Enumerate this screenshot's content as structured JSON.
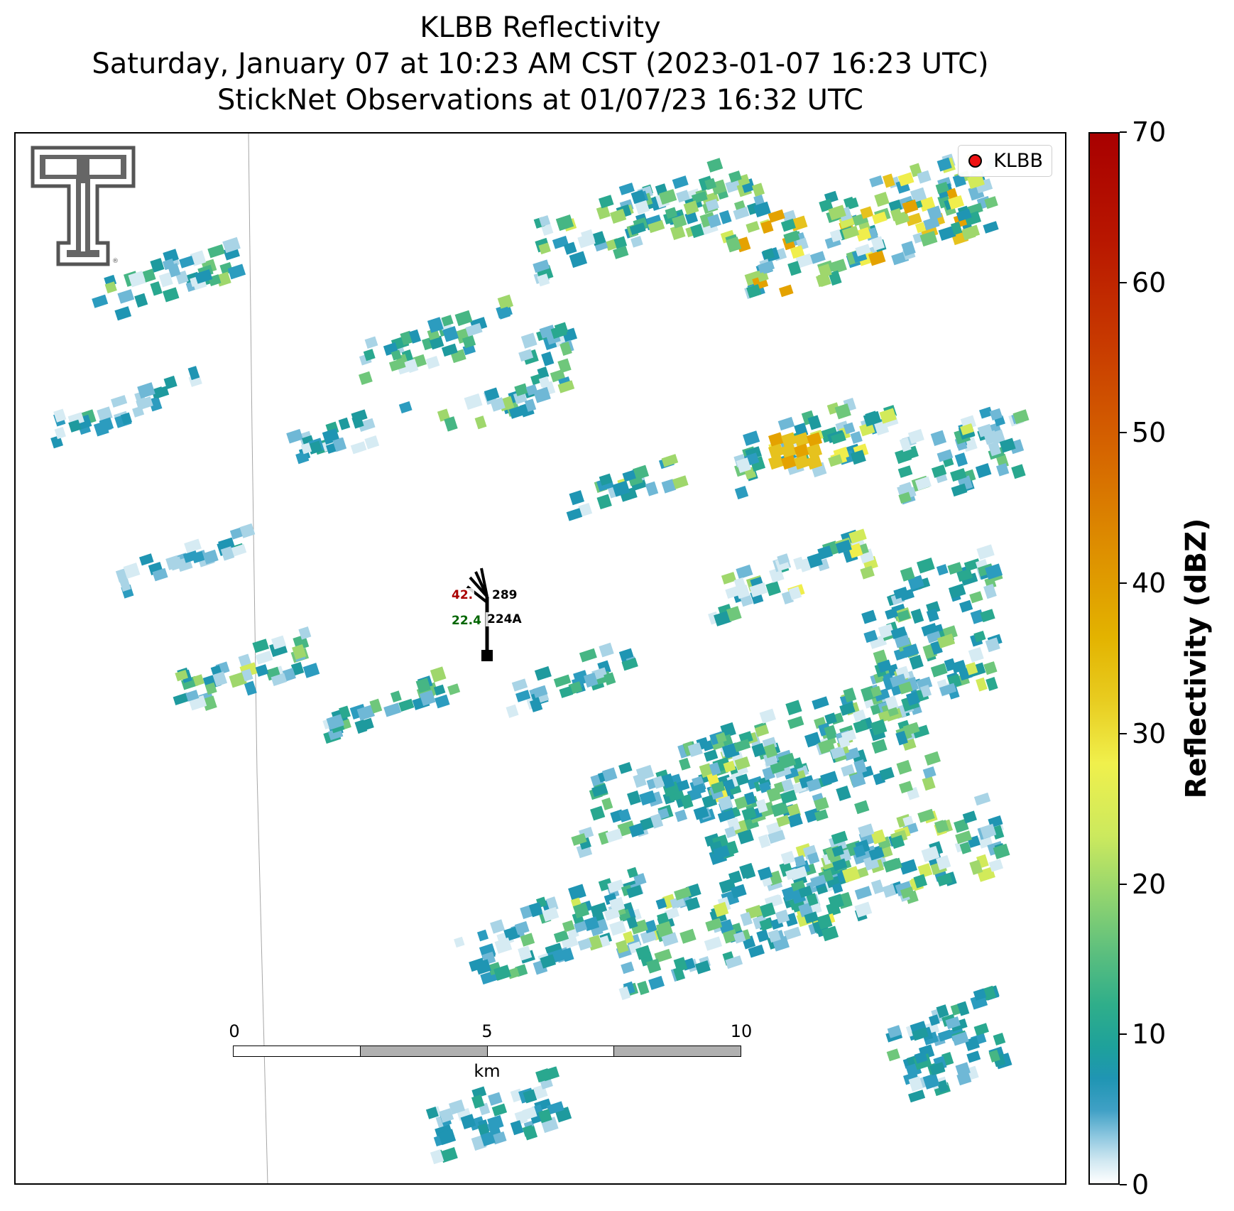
{
  "title": {
    "line1": "KLBB Reflectivity",
    "line2": "Saturday, January 07 at 10:23 AM CST (2023-01-07 16:23 UTC)",
    "line3": "StickNet Observations at 01/07/23 16:32 UTC"
  },
  "legend": {
    "label": "KLBB",
    "marker_color": "#ee1111"
  },
  "station": {
    "id": "224A",
    "temperature": "42.",
    "dewpoint": "22.4",
    "pressure_code": "289",
    "temperature_color": "#aa0000",
    "dewpoint_color": "#006600"
  },
  "scalebar": {
    "ticks": [
      "0",
      "5",
      "10"
    ],
    "unit": "km"
  },
  "colorbar": {
    "label": "Reflectivity (dBZ)",
    "ticks": [
      "0",
      "10",
      "20",
      "30",
      "40",
      "50",
      "60",
      "70"
    ],
    "vmin": 0,
    "vmax": 70
  },
  "logo": {
    "name": "texas-tech-double-t-logo",
    "color": "#555555"
  }
}
